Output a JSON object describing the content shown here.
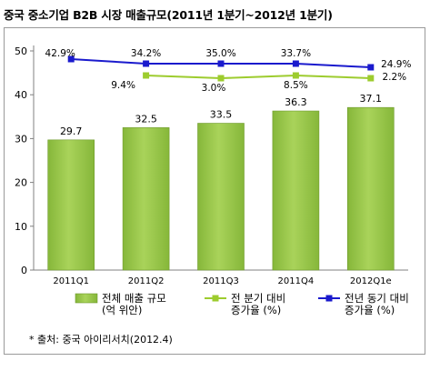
{
  "title": "중국 중소기업 B2B 시장 매출규모(2011년 1분기~2012년 1분기)",
  "source": "* 출처: 중국 아이리서치(2012.4)",
  "colors": {
    "bar": "#86b73a",
    "bar_top": "#a9d35a",
    "qoq_line": "#9dcc2e",
    "yoy_line": "#1a1acd"
  },
  "chart_data": {
    "type": "bar",
    "categories": [
      "2011Q1",
      "2011Q2",
      "2011Q3",
      "2011Q4",
      "2012Q1e"
    ],
    "ylim": [
      0,
      50
    ],
    "yticks": [
      0,
      10,
      20,
      30,
      40,
      50
    ],
    "series": [
      {
        "name": "전체 매출 규모 (억 위안)",
        "type": "bar",
        "values": [
          29.7,
          32.5,
          33.5,
          36.3,
          37.1
        ],
        "labels": [
          "29.7",
          "32.5",
          "33.5",
          "36.3",
          "37.1"
        ]
      },
      {
        "name": "전 분기 대비 증가율 (%)",
        "type": "line",
        "values": [
          null,
          9.4,
          3.0,
          8.5,
          2.2
        ],
        "labels": [
          "",
          "9.4%",
          "3.0%",
          "8.5%",
          "2.2%"
        ]
      },
      {
        "name": "전년 동기 대비 증가율 (%)",
        "type": "line",
        "values": [
          42.9,
          34.2,
          35.0,
          33.7,
          24.9
        ],
        "labels": [
          "42.9%",
          "34.2%",
          "35.0%",
          "33.7%",
          "24.9%"
        ]
      }
    ],
    "legend": [
      {
        "line1": "전체 매출 규모",
        "line2": "(억 위안)"
      },
      {
        "line1": "전 분기 대비",
        "line2": "증가율 (%)"
      },
      {
        "line1": "전년 동기 대비",
        "line2": "증가율 (%)"
      }
    ]
  }
}
